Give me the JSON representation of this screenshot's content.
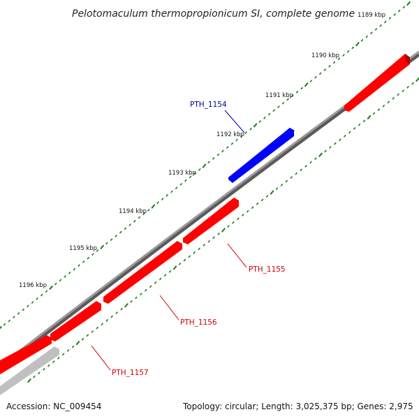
{
  "title": "Pelotomaculum thermopropionicum SI, complete genome",
  "footer": {
    "accession": "Accession: NC_009454",
    "topology": "Topology: circular; Length: 3,025,375 bp; Genes: 2,975"
  },
  "colors": {
    "backbone": "#888888",
    "tick_green": "#1a7a1a",
    "gene_forward": "#0000ff",
    "gene_reverse": "#ff0000",
    "gene_other": "#c0c0c0",
    "label_forward": "#000099",
    "label_reverse": "#cc0000"
  },
  "ticks": [
    {
      "label": "1189 kbp"
    },
    {
      "label": "1190 kbp"
    },
    {
      "label": "1191 kbp"
    },
    {
      "label": "1192 kbp"
    },
    {
      "label": "1193 kbp"
    },
    {
      "label": "1194 kbp"
    },
    {
      "label": "1195 kbp"
    },
    {
      "label": "1196 kbp"
    }
  ],
  "genes": [
    {
      "name": "PTH_1154",
      "strand": "forward"
    },
    {
      "name": "PTH_1155",
      "strand": "reverse"
    },
    {
      "name": "PTH_1156",
      "strand": "reverse"
    },
    {
      "name": "PTH_1157",
      "strand": "reverse"
    },
    {
      "name": "",
      "strand": "reverse"
    },
    {
      "name": "",
      "strand": "other"
    }
  ]
}
